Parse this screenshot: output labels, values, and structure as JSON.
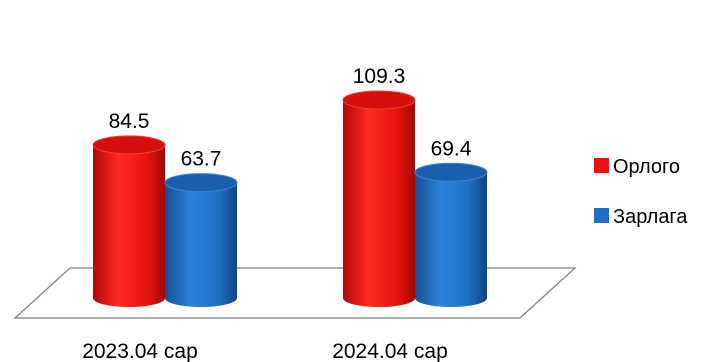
{
  "chart_data": {
    "type": "bar",
    "style": "3d-cylinder",
    "categories": [
      "2023.04 сар",
      "2024.04 сар"
    ],
    "series": [
      {
        "name": "Орлого",
        "values": [
          84.5,
          109.3
        ],
        "value_labels": [
          "84.5",
          "109.3"
        ],
        "color": "#e8120e"
      },
      {
        "name": "Зарлага",
        "values": [
          63.7,
          69.4
        ],
        "value_labels": [
          "63.7",
          "69.4"
        ],
        "color": "#1f6fc4"
      }
    ],
    "title": "",
    "xlabel": "",
    "ylabel": "",
    "ylim": [
      0,
      120
    ],
    "grid": false,
    "legend_position": "right"
  }
}
